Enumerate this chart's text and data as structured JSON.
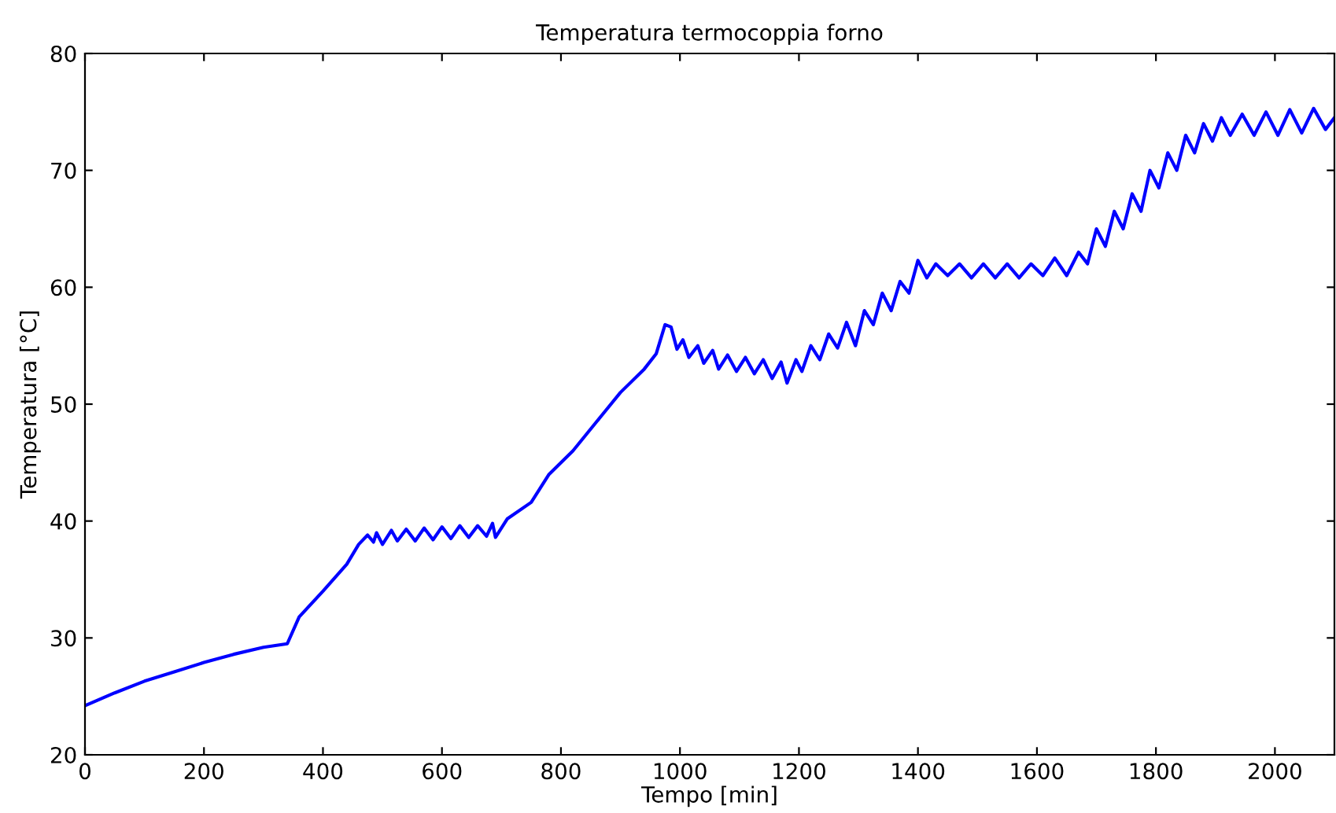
{
  "chart_data": {
    "type": "line",
    "title": "Temperatura termocoppia forno",
    "xlabel": "Tempo [min]",
    "ylabel": "Temperatura [°C]",
    "xlim": [
      0,
      2100
    ],
    "ylim": [
      20,
      80
    ],
    "xticks": [
      0,
      200,
      400,
      600,
      800,
      1000,
      1200,
      1400,
      1600,
      1800,
      2000
    ],
    "yticks": [
      20,
      30,
      40,
      50,
      60,
      70,
      80
    ],
    "grid": false,
    "legend": false,
    "series": [
      {
        "color": "#0000ff",
        "x": [
          0,
          50,
          100,
          150,
          200,
          250,
          300,
          340,
          360,
          400,
          440,
          460,
          475,
          485,
          490,
          500,
          515,
          525,
          540,
          555,
          570,
          585,
          600,
          615,
          630,
          645,
          660,
          675,
          685,
          690,
          710,
          750,
          780,
          820,
          860,
          900,
          940,
          960,
          975,
          985,
          995,
          1005,
          1015,
          1030,
          1040,
          1055,
          1065,
          1080,
          1095,
          1110,
          1125,
          1140,
          1155,
          1170,
          1180,
          1195,
          1205,
          1220,
          1235,
          1250,
          1265,
          1280,
          1295,
          1310,
          1325,
          1340,
          1355,
          1370,
          1385,
          1400,
          1415,
          1430,
          1450,
          1470,
          1490,
          1510,
          1530,
          1550,
          1570,
          1590,
          1610,
          1630,
          1650,
          1670,
          1685,
          1700,
          1715,
          1730,
          1745,
          1760,
          1775,
          1790,
          1805,
          1820,
          1835,
          1850,
          1865,
          1880,
          1895,
          1910,
          1925,
          1945,
          1965,
          1985,
          2005,
          2025,
          2045,
          2065,
          2085,
          2100
        ],
        "values": [
          24.2,
          25.3,
          26.3,
          27.1,
          27.9,
          28.6,
          29.2,
          29.5,
          31.8,
          34.0,
          36.3,
          38.0,
          38.8,
          38.2,
          39.0,
          38.0,
          39.2,
          38.3,
          39.3,
          38.3,
          39.4,
          38.4,
          39.5,
          38.5,
          39.6,
          38.6,
          39.6,
          38.7,
          39.8,
          38.6,
          40.2,
          41.6,
          44.0,
          46.0,
          48.5,
          51.0,
          53.0,
          54.3,
          56.8,
          56.6,
          54.7,
          55.5,
          54.0,
          55.0,
          53.5,
          54.6,
          53.0,
          54.2,
          52.8,
          54.0,
          52.6,
          53.8,
          52.2,
          53.6,
          51.8,
          53.8,
          52.8,
          55.0,
          53.8,
          56.0,
          54.8,
          57.0,
          55.0,
          58.0,
          56.8,
          59.5,
          58.0,
          60.5,
          59.5,
          62.3,
          60.8,
          62.0,
          61.0,
          62.0,
          60.8,
          62.0,
          60.8,
          62.0,
          60.8,
          62.0,
          61.0,
          62.5,
          61.0,
          63.0,
          62.0,
          65.0,
          63.5,
          66.5,
          65.0,
          68.0,
          66.5,
          70.0,
          68.5,
          71.5,
          70.0,
          73.0,
          71.5,
          74.0,
          72.5,
          74.5,
          73.0,
          74.8,
          73.0,
          75.0,
          73.0,
          75.2,
          73.2,
          75.3,
          73.5,
          74.5
        ]
      }
    ]
  }
}
